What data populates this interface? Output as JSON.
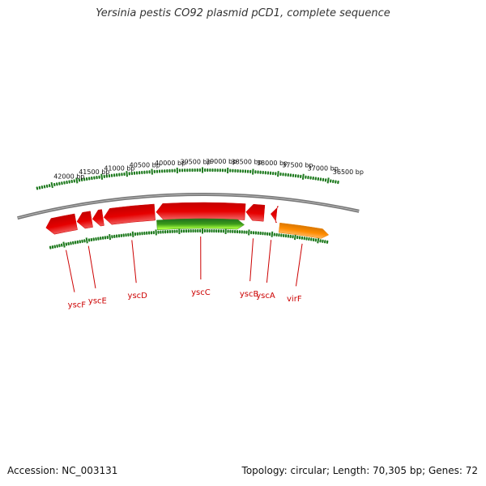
{
  "title": "Yersinia pestis CO92 plasmid pCD1, complete sequence",
  "footer": {
    "accession": "Accession: NC_003131",
    "summary": "Topology: circular; Length: 70,305 bp; Genes: 72"
  },
  "diagram": {
    "length_bp": 70305,
    "view_range_bp": [
      36300,
      42300
    ],
    "tick_labels": [
      "42000 bp",
      "41500 bp",
      "41000 bp",
      "40500 bp",
      "40000 bp",
      "39500 bp",
      "39000 bp",
      "38500 bp",
      "38000 bp",
      "37500 bp",
      "37000 bp",
      "36500 bp"
    ],
    "tick_values": [
      42000,
      41500,
      41000,
      40500,
      40000,
      39500,
      39000,
      38500,
      38000,
      37500,
      37000,
      36500
    ],
    "genes": [
      {
        "name": "yscF",
        "start": 41660,
        "end": 42300,
        "strand": "+",
        "color": "#e60000"
      },
      {
        "name": "yscE",
        "start": 41330,
        "end": 41640,
        "strand": "+",
        "color": "#e60000"
      },
      {
        "name": "",
        "start": 41090,
        "end": 41310,
        "strand": "+",
        "color": "#e60000"
      },
      {
        "name": "yscD",
        "start": 40000,
        "end": 41070,
        "strand": "+",
        "color": "#e60000"
      },
      {
        "name": "",
        "start": 38110,
        "end": 39970,
        "strand": "+",
        "color": "#e60000"
      },
      {
        "name": "yscC",
        "start": 38110,
        "end": 39970,
        "strand": "-",
        "color": "#3a9a1a"
      },
      {
        "name": "yscB",
        "start": 37710,
        "end": 38090,
        "strand": "+",
        "color": "#e60000"
      },
      {
        "name": "yscA",
        "start": 37450,
        "end": 37570,
        "strand": "+",
        "color": "#e60000"
      },
      {
        "name": "virF",
        "start": 36300,
        "end": 37360,
        "strand": "-",
        "color": "#ff8c00"
      }
    ]
  }
}
